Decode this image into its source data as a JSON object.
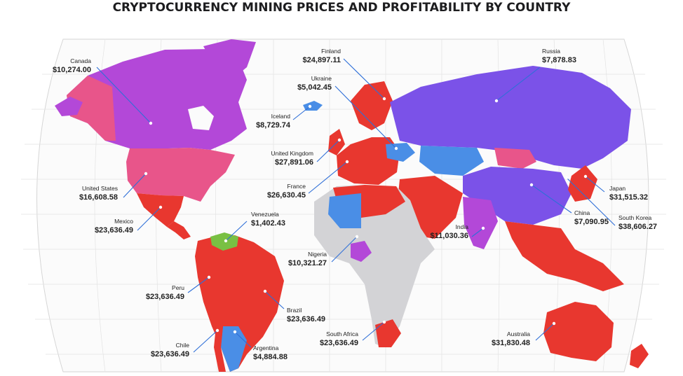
{
  "title": "CRYPTOCURRENCY MINING PRICES AND PROFITABILITY BY COUNTRY",
  "colors": {
    "red": "#e8372f",
    "purple": "#7b52e8",
    "magenta": "#b348d8",
    "pink": "#e8558a",
    "blue": "#4a8ee6",
    "green": "#79c043",
    "gray": "#d3d3d6",
    "leader": "#2f6fd8"
  },
  "countries": [
    {
      "id": "canada",
      "name": "Canada",
      "price": "$10,274.00",
      "color": "magenta"
    },
    {
      "id": "finland",
      "name": "Finland",
      "price": "$24,897.11",
      "color": "red"
    },
    {
      "id": "russia",
      "name": "Russia",
      "price": "$7,878.83",
      "color": "purple"
    },
    {
      "id": "ukraine",
      "name": "Ukraine",
      "price": "$5,042.45",
      "color": "blue"
    },
    {
      "id": "iceland",
      "name": "Iceland",
      "price": "$8,729.74",
      "color": "blue"
    },
    {
      "id": "united-kingdom",
      "name": "United Kingdom",
      "price": "$27,891.06",
      "color": "red"
    },
    {
      "id": "france",
      "name": "France",
      "price": "$26,630.45",
      "color": "red"
    },
    {
      "id": "united-states",
      "name": "United States",
      "price": "$16,608.58",
      "color": "pink"
    },
    {
      "id": "mexico",
      "name": "Mexico",
      "price": "$23,636.49",
      "color": "red"
    },
    {
      "id": "venezuela",
      "name": "Venezuela",
      "price": "$1,402.43",
      "color": "green"
    },
    {
      "id": "nigeria",
      "name": "Nigeria",
      "price": "$10,321.27",
      "color": "magenta"
    },
    {
      "id": "india",
      "name": "India",
      "price": "$11,030.36",
      "color": "magenta"
    },
    {
      "id": "china",
      "name": "China",
      "price": "$7,090.95",
      "color": "purple"
    },
    {
      "id": "japan",
      "name": "Japan",
      "price": "$31,515.32",
      "color": "red"
    },
    {
      "id": "south-korea",
      "name": "South Korea",
      "price": "$38,606.27",
      "color": "red"
    },
    {
      "id": "peru",
      "name": "Peru",
      "price": "$23,636.49",
      "color": "red"
    },
    {
      "id": "brazil",
      "name": "Brazil",
      "price": "$23,636.49",
      "color": "red"
    },
    {
      "id": "chile",
      "name": "Chile",
      "price": "$23,636.49",
      "color": "red"
    },
    {
      "id": "argentina",
      "name": "Argentina",
      "price": "$4,884.88",
      "color": "blue"
    },
    {
      "id": "south-africa",
      "name": "South Africa",
      "price": "$23,636.49",
      "color": "red"
    },
    {
      "id": "australia",
      "name": "Australia",
      "price": "$31,830.48",
      "color": "red"
    }
  ]
}
